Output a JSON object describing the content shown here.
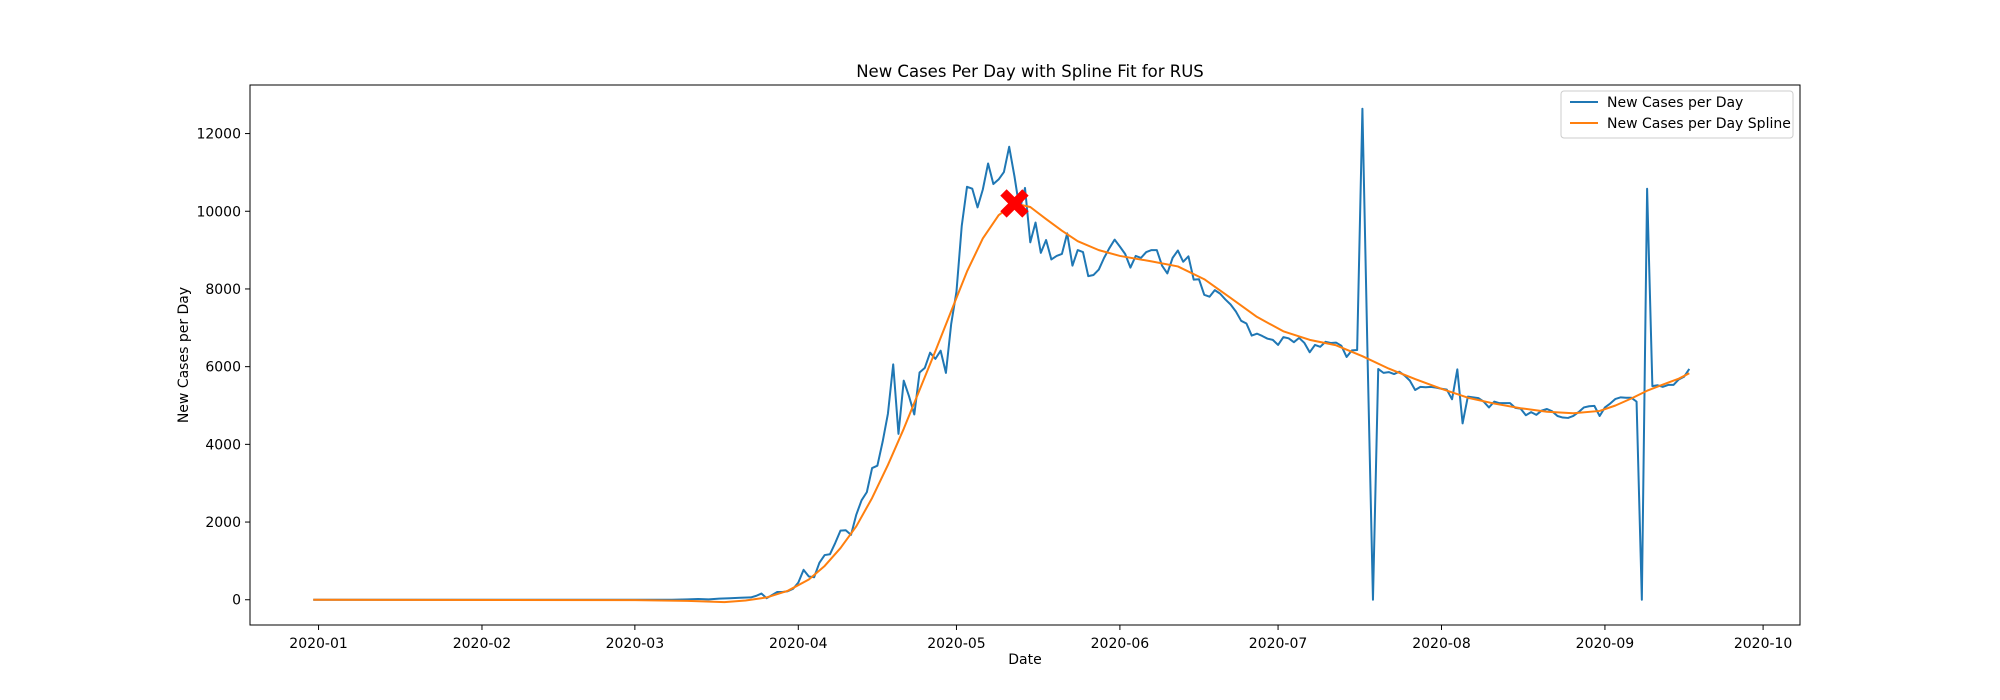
{
  "chart_data": {
    "type": "line",
    "title": "New Cases Per Day with Spline Fit for RUS",
    "xlabel": "Date",
    "ylabel": "New Cases per Day",
    "x_axis_type": "date",
    "xlim": [
      "2019-12-19",
      "2020-10-08"
    ],
    "ylim": [
      -650,
      13250
    ],
    "x_ticks": [
      "2020-01-01",
      "2020-02-01",
      "2020-03-01",
      "2020-04-01",
      "2020-05-01",
      "2020-06-01",
      "2020-07-01",
      "2020-08-01",
      "2020-09-01",
      "2020-10-01"
    ],
    "x_tick_labels": [
      "2020-01",
      "2020-02",
      "2020-03",
      "2020-04",
      "2020-05",
      "2020-06",
      "2020-07",
      "2020-08",
      "2020-09",
      "2020-10"
    ],
    "y_ticks": [
      0,
      2000,
      4000,
      6000,
      8000,
      10000,
      12000
    ],
    "y_tick_labels": [
      "0",
      "2000",
      "4000",
      "6000",
      "8000",
      "10000",
      "12000"
    ],
    "grid": false,
    "legend_position": "top-right",
    "series": [
      {
        "name": "New Cases per Day",
        "color": "#1f77b4",
        "points": [
          [
            "2019-12-31",
            0
          ],
          [
            "2020-03-05",
            0
          ],
          [
            "2020-03-08",
            0
          ],
          [
            "2020-03-11",
            10
          ],
          [
            "2020-03-13",
            20
          ],
          [
            "2020-03-15",
            10
          ],
          [
            "2020-03-17",
            30
          ],
          [
            "2020-03-19",
            40
          ],
          [
            "2020-03-21",
            50
          ],
          [
            "2020-03-23",
            60
          ],
          [
            "2020-03-24",
            100
          ],
          [
            "2020-03-25",
            160
          ],
          [
            "2020-03-26",
            40
          ],
          [
            "2020-03-27",
            120
          ],
          [
            "2020-03-28",
            200
          ],
          [
            "2020-03-29",
            200
          ],
          [
            "2020-03-30",
            220
          ],
          [
            "2020-03-31",
            280
          ],
          [
            "2020-04-01",
            440
          ],
          [
            "2020-04-02",
            770
          ],
          [
            "2020-04-03",
            600
          ],
          [
            "2020-04-04",
            580
          ],
          [
            "2020-04-05",
            950
          ],
          [
            "2020-04-06",
            1150
          ],
          [
            "2020-04-07",
            1170
          ],
          [
            "2020-04-08",
            1460
          ],
          [
            "2020-04-09",
            1780
          ],
          [
            "2020-04-10",
            1790
          ],
          [
            "2020-04-11",
            1670
          ],
          [
            "2020-04-12",
            2190
          ],
          [
            "2020-04-13",
            2560
          ],
          [
            "2020-04-14",
            2770
          ],
          [
            "2020-04-15",
            3390
          ],
          [
            "2020-04-16",
            3450
          ],
          [
            "2020-04-17",
            4070
          ],
          [
            "2020-04-18",
            4790
          ],
          [
            "2020-04-19",
            6060
          ],
          [
            "2020-04-20",
            4270
          ],
          [
            "2020-04-21",
            5640
          ],
          [
            "2020-04-22",
            5240
          ],
          [
            "2020-04-23",
            4770
          ],
          [
            "2020-04-24",
            5850
          ],
          [
            "2020-04-25",
            5970
          ],
          [
            "2020-04-26",
            6360
          ],
          [
            "2020-04-27",
            6200
          ],
          [
            "2020-04-28",
            6410
          ],
          [
            "2020-04-29",
            5840
          ],
          [
            "2020-04-30",
            7100
          ],
          [
            "2020-05-01",
            7930
          ],
          [
            "2020-05-02",
            9620
          ],
          [
            "2020-05-03",
            10630
          ],
          [
            "2020-05-04",
            10580
          ],
          [
            "2020-05-05",
            10100
          ],
          [
            "2020-05-06",
            10560
          ],
          [
            "2020-05-07",
            11230
          ],
          [
            "2020-05-08",
            10700
          ],
          [
            "2020-05-09",
            10820
          ],
          [
            "2020-05-10",
            11010
          ],
          [
            "2020-05-11",
            11660
          ],
          [
            "2020-05-12",
            10900
          ],
          [
            "2020-05-13",
            10030
          ],
          [
            "2020-05-14",
            10600
          ],
          [
            "2020-05-15",
            9200
          ],
          [
            "2020-05-16",
            9710
          ],
          [
            "2020-05-17",
            8930
          ],
          [
            "2020-05-18",
            9260
          ],
          [
            "2020-05-19",
            8760
          ],
          [
            "2020-05-20",
            8850
          ],
          [
            "2020-05-21",
            8900
          ],
          [
            "2020-05-22",
            9430
          ],
          [
            "2020-05-23",
            8600
          ],
          [
            "2020-05-24",
            9000
          ],
          [
            "2020-05-25",
            8950
          ],
          [
            "2020-05-26",
            8330
          ],
          [
            "2020-05-27",
            8360
          ],
          [
            "2020-05-28",
            8500
          ],
          [
            "2020-05-29",
            8800
          ],
          [
            "2020-05-30",
            9050
          ],
          [
            "2020-05-31",
            9270
          ],
          [
            "2020-06-01",
            9090
          ],
          [
            "2020-06-02",
            8900
          ],
          [
            "2020-06-03",
            8550
          ],
          [
            "2020-06-04",
            8850
          ],
          [
            "2020-06-05",
            8800
          ],
          [
            "2020-06-06",
            8950
          ],
          [
            "2020-06-07",
            9000
          ],
          [
            "2020-06-08",
            9000
          ],
          [
            "2020-06-09",
            8600
          ],
          [
            "2020-06-10",
            8400
          ],
          [
            "2020-06-11",
            8800
          ],
          [
            "2020-06-12",
            8990
          ],
          [
            "2020-06-13",
            8700
          ],
          [
            "2020-06-14",
            8840
          ],
          [
            "2020-06-15",
            8240
          ],
          [
            "2020-06-16",
            8250
          ],
          [
            "2020-06-17",
            7850
          ],
          [
            "2020-06-18",
            7800
          ],
          [
            "2020-06-19",
            7970
          ],
          [
            "2020-06-20",
            7880
          ],
          [
            "2020-06-21",
            7730
          ],
          [
            "2020-06-22",
            7600
          ],
          [
            "2020-06-23",
            7420
          ],
          [
            "2020-06-24",
            7180
          ],
          [
            "2020-06-25",
            7110
          ],
          [
            "2020-06-26",
            6800
          ],
          [
            "2020-06-27",
            6850
          ],
          [
            "2020-06-28",
            6790
          ],
          [
            "2020-06-29",
            6720
          ],
          [
            "2020-06-30",
            6690
          ],
          [
            "2020-07-01",
            6560
          ],
          [
            "2020-07-02",
            6760
          ],
          [
            "2020-07-03",
            6730
          ],
          [
            "2020-07-04",
            6630
          ],
          [
            "2020-07-05",
            6740
          ],
          [
            "2020-07-06",
            6610
          ],
          [
            "2020-07-07",
            6370
          ],
          [
            "2020-07-08",
            6560
          ],
          [
            "2020-07-09",
            6510
          ],
          [
            "2020-07-10",
            6640
          ],
          [
            "2020-07-11",
            6610
          ],
          [
            "2020-07-12",
            6620
          ],
          [
            "2020-07-13",
            6540
          ],
          [
            "2020-07-14",
            6250
          ],
          [
            "2020-07-15",
            6420
          ],
          [
            "2020-07-16",
            6430
          ],
          [
            "2020-07-17",
            12640
          ],
          [
            "2020-07-18",
            6100
          ],
          [
            "2020-07-19",
            0
          ],
          [
            "2020-07-20",
            5940
          ],
          [
            "2020-07-21",
            5840
          ],
          [
            "2020-07-22",
            5860
          ],
          [
            "2020-07-23",
            5810
          ],
          [
            "2020-07-24",
            5870
          ],
          [
            "2020-07-25",
            5770
          ],
          [
            "2020-07-26",
            5640
          ],
          [
            "2020-07-27",
            5400
          ],
          [
            "2020-07-28",
            5480
          ],
          [
            "2020-07-29",
            5470
          ],
          [
            "2020-07-30",
            5480
          ],
          [
            "2020-07-31",
            5460
          ],
          [
            "2020-08-01",
            5430
          ],
          [
            "2020-08-02",
            5410
          ],
          [
            "2020-08-03",
            5160
          ],
          [
            "2020-08-04",
            5930
          ],
          [
            "2020-08-05",
            4540
          ],
          [
            "2020-08-06",
            5230
          ],
          [
            "2020-08-07",
            5210
          ],
          [
            "2020-08-08",
            5190
          ],
          [
            "2020-08-09",
            5100
          ],
          [
            "2020-08-10",
            4950
          ],
          [
            "2020-08-11",
            5100
          ],
          [
            "2020-08-12",
            5060
          ],
          [
            "2020-08-13",
            5060
          ],
          [
            "2020-08-14",
            5060
          ],
          [
            "2020-08-15",
            4940
          ],
          [
            "2020-08-16",
            4920
          ],
          [
            "2020-08-17",
            4750
          ],
          [
            "2020-08-18",
            4830
          ],
          [
            "2020-08-19",
            4760
          ],
          [
            "2020-08-20",
            4870
          ],
          [
            "2020-08-21",
            4910
          ],
          [
            "2020-08-22",
            4850
          ],
          [
            "2020-08-23",
            4730
          ],
          [
            "2020-08-24",
            4690
          ],
          [
            "2020-08-25",
            4680
          ],
          [
            "2020-08-26",
            4730
          ],
          [
            "2020-08-27",
            4830
          ],
          [
            "2020-08-28",
            4950
          ],
          [
            "2020-08-29",
            4980
          ],
          [
            "2020-08-30",
            4990
          ],
          [
            "2020-08-31",
            4730
          ],
          [
            "2020-09-01",
            4950
          ],
          [
            "2020-09-02",
            5050
          ],
          [
            "2020-09-03",
            5170
          ],
          [
            "2020-09-04",
            5210
          ],
          [
            "2020-09-05",
            5200
          ],
          [
            "2020-09-06",
            5200
          ],
          [
            "2020-09-07",
            5100
          ],
          [
            "2020-09-08",
            0
          ],
          [
            "2020-09-09",
            10580
          ],
          [
            "2020-09-10",
            5500
          ],
          [
            "2020-09-11",
            5520
          ],
          [
            "2020-09-12",
            5480
          ],
          [
            "2020-09-13",
            5530
          ],
          [
            "2020-09-14",
            5530
          ],
          [
            "2020-09-15",
            5670
          ],
          [
            "2020-09-16",
            5740
          ],
          [
            "2020-09-17",
            5940
          ]
        ]
      },
      {
        "name": "New Cases per Day Spline",
        "color": "#ff7f0e",
        "points": [
          [
            "2019-12-31",
            0
          ],
          [
            "2020-03-01",
            -10
          ],
          [
            "2020-03-11",
            -30
          ],
          [
            "2020-03-18",
            -60
          ],
          [
            "2020-03-22",
            -20
          ],
          [
            "2020-03-26",
            60
          ],
          [
            "2020-03-30",
            230
          ],
          [
            "2020-04-03",
            520
          ],
          [
            "2020-04-06",
            870
          ],
          [
            "2020-04-09",
            1330
          ],
          [
            "2020-04-12",
            1890
          ],
          [
            "2020-04-15",
            2620
          ],
          [
            "2020-04-18",
            3470
          ],
          [
            "2020-04-21",
            4400
          ],
          [
            "2020-04-24",
            5400
          ],
          [
            "2020-04-27",
            6400
          ],
          [
            "2020-04-30",
            7430
          ],
          [
            "2020-05-03",
            8450
          ],
          [
            "2020-05-06",
            9300
          ],
          [
            "2020-05-09",
            9900
          ],
          [
            "2020-05-12",
            10200
          ],
          [
            "2020-05-15",
            10110
          ],
          [
            "2020-05-18",
            9800
          ],
          [
            "2020-05-21",
            9500
          ],
          [
            "2020-05-24",
            9230
          ],
          [
            "2020-05-28",
            9000
          ],
          [
            "2020-06-01",
            8850
          ],
          [
            "2020-06-07",
            8710
          ],
          [
            "2020-06-12",
            8580
          ],
          [
            "2020-06-17",
            8250
          ],
          [
            "2020-06-22",
            7770
          ],
          [
            "2020-06-27",
            7280
          ],
          [
            "2020-07-02",
            6910
          ],
          [
            "2020-07-07",
            6690
          ],
          [
            "2020-07-12",
            6550
          ],
          [
            "2020-07-17",
            6270
          ],
          [
            "2020-07-22",
            5950
          ],
          [
            "2020-07-27",
            5680
          ],
          [
            "2020-08-01",
            5430
          ],
          [
            "2020-08-06",
            5200
          ],
          [
            "2020-08-11",
            5050
          ],
          [
            "2020-08-16",
            4930
          ],
          [
            "2020-08-21",
            4840
          ],
          [
            "2020-08-26",
            4800
          ],
          [
            "2020-08-31",
            4860
          ],
          [
            "2020-09-03",
            5000
          ],
          [
            "2020-09-06",
            5180
          ],
          [
            "2020-09-09",
            5380
          ],
          [
            "2020-09-12",
            5540
          ],
          [
            "2020-09-15",
            5690
          ],
          [
            "2020-09-17",
            5830
          ]
        ]
      }
    ],
    "marker": {
      "date": "2020-05-12",
      "value": 10200,
      "color": "#ff0000",
      "symbol": "X"
    }
  }
}
